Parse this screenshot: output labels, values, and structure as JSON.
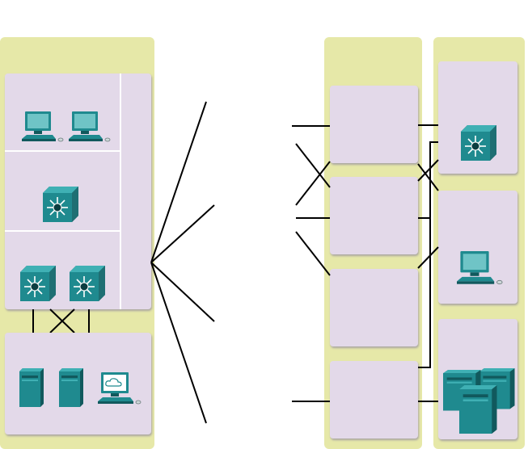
{
  "diagram": {
    "colors": {
      "column_bg": "#e6e8a8",
      "box_fill": "#e3d9e9",
      "box_shadow": "#b9b3bf",
      "box_divider": "#ffffff",
      "line": "#000000",
      "device_teal": "#1f8a8f",
      "device_teal_dark": "#11595d",
      "device_teal_light": "#3fb0b4",
      "screen": "#6fc4c6"
    },
    "left_column": {
      "access_layer_devices": [
        "pc-icon",
        "pc-icon"
      ],
      "distribution_layer_devices": [
        "multilayer-switch-icon"
      ],
      "core_layer_devices": [
        "multilayer-switch-icon",
        "multilayer-switch-icon"
      ],
      "server_farm_devices": [
        "server-icon",
        "server-icon",
        "web-client-icon"
      ]
    },
    "middle_column": {
      "boxes": 4
    },
    "right_column": {
      "box1_devices": [
        "multilayer-switch-icon"
      ],
      "box2_devices": [
        "pc-icon"
      ],
      "box3_devices": [
        "server-cluster-icon"
      ]
    }
  }
}
